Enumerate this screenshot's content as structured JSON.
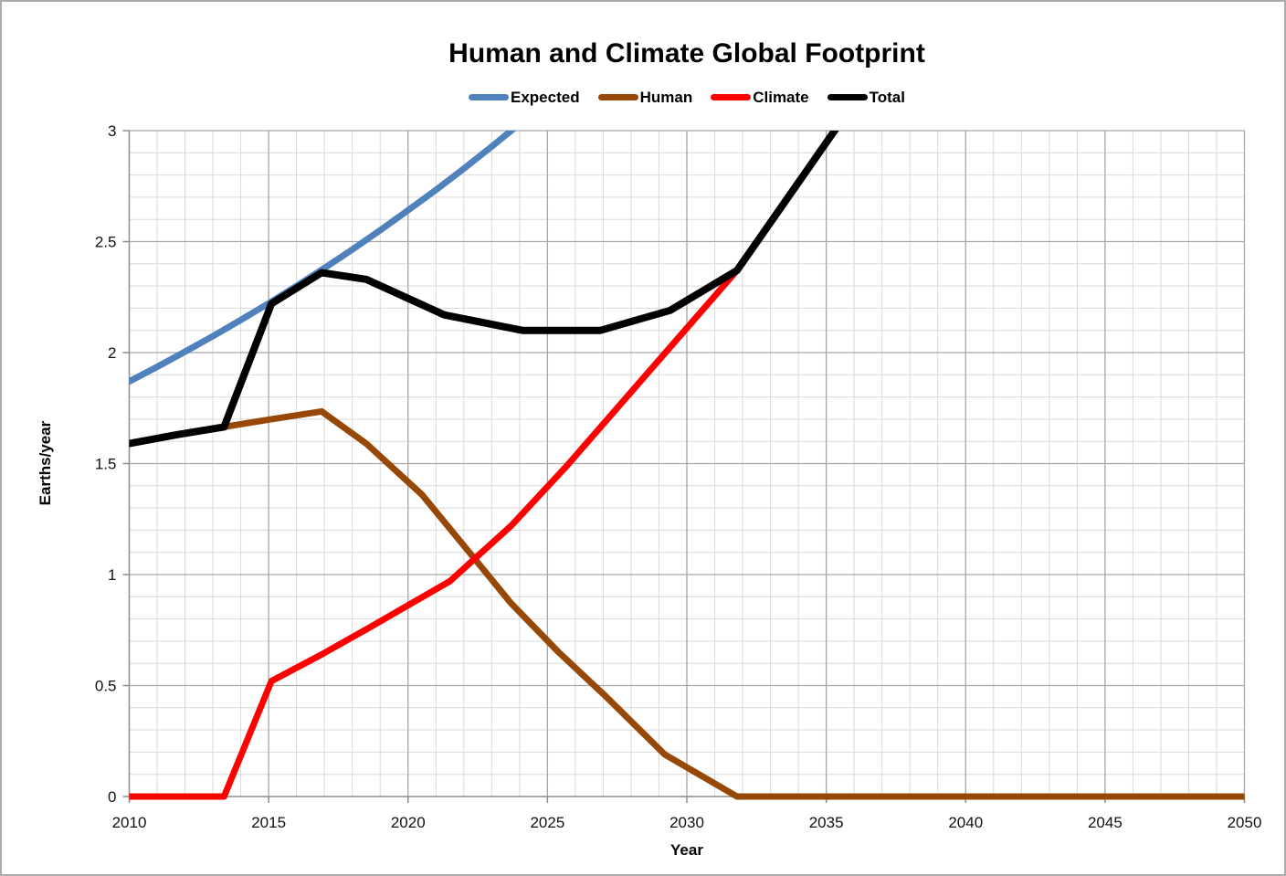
{
  "chart_data": {
    "type": "line",
    "title": "Human and Climate Global Footprint",
    "xlabel": "Year",
    "ylabel": "Earths/year",
    "xlim": [
      2010,
      2050
    ],
    "ylim": [
      0,
      3
    ],
    "x_ticks": [
      2010,
      2015,
      2020,
      2025,
      2030,
      2035,
      2040,
      2045,
      2050
    ],
    "y_ticks": [
      "0",
      "0.5",
      "1",
      "1.5",
      "2",
      "2.5",
      "3"
    ],
    "y_tick_values": [
      0,
      0.5,
      1,
      1.5,
      2,
      2.5,
      3
    ],
    "grid": {
      "on": true,
      "minor_x_step_years": 1,
      "minor_y_step": 0.1,
      "major_x_step_years": 5,
      "major_y_step": 0.5
    },
    "legend_position": "top",
    "colors": {
      "axis": "#8c8c8c",
      "grid_minor": "#d9d9d9",
      "grid_major": "#a6a6a6",
      "text": "#000000"
    },
    "series": [
      {
        "name": "Expected",
        "color": "#4F81BD",
        "points": [
          [
            2010,
            1.87
          ],
          [
            2011,
            1.936
          ],
          [
            2012,
            2.004
          ],
          [
            2013,
            2.074
          ],
          [
            2014,
            2.147
          ],
          [
            2015,
            2.222
          ],
          [
            2016,
            2.3
          ],
          [
            2017,
            2.381
          ],
          [
            2018,
            2.464
          ],
          [
            2019,
            2.551
          ],
          [
            2020,
            2.641
          ],
          [
            2021,
            2.733
          ],
          [
            2022,
            2.829
          ],
          [
            2023,
            2.928
          ],
          [
            2024,
            3.031
          ]
        ]
      },
      {
        "name": "Human",
        "color": "#974806",
        "points": [
          [
            2010,
            1.59
          ],
          [
            2011.7,
            1.63
          ],
          [
            2013.4,
            1.665
          ],
          [
            2015.1,
            1.7
          ],
          [
            2016.9,
            1.735
          ],
          [
            2018.5,
            1.59
          ],
          [
            2020.5,
            1.36
          ],
          [
            2022.2,
            1.1
          ],
          [
            2023.7,
            0.87
          ],
          [
            2025.4,
            0.65
          ],
          [
            2027.1,
            0.45
          ],
          [
            2029.2,
            0.19
          ],
          [
            2031.8,
            0.0
          ],
          [
            2050,
            0.0
          ]
        ]
      },
      {
        "name": "Climate",
        "color": "#FF0000",
        "points": [
          [
            2010,
            0.0
          ],
          [
            2013.4,
            0.0
          ],
          [
            2015.1,
            0.52
          ],
          [
            2016.9,
            0.64
          ],
          [
            2018.6,
            0.76
          ],
          [
            2021.5,
            0.97
          ],
          [
            2023.7,
            1.22
          ],
          [
            2025.7,
            1.49
          ],
          [
            2031.8,
            2.37
          ],
          [
            2035.3,
            3.0
          ],
          [
            2036.2,
            3.15
          ]
        ]
      },
      {
        "name": "Total",
        "color": "#000000",
        "points": [
          [
            2010,
            1.59
          ],
          [
            2011.7,
            1.63
          ],
          [
            2013.4,
            1.665
          ],
          [
            2015.1,
            2.22
          ],
          [
            2016.9,
            2.36
          ],
          [
            2018.5,
            2.33
          ],
          [
            2021.3,
            2.17
          ],
          [
            2024.1,
            2.1
          ],
          [
            2026.9,
            2.1
          ],
          [
            2029.4,
            2.19
          ],
          [
            2031.8,
            2.37
          ],
          [
            2035.3,
            3.0
          ],
          [
            2036.2,
            3.15
          ]
        ]
      }
    ]
  }
}
